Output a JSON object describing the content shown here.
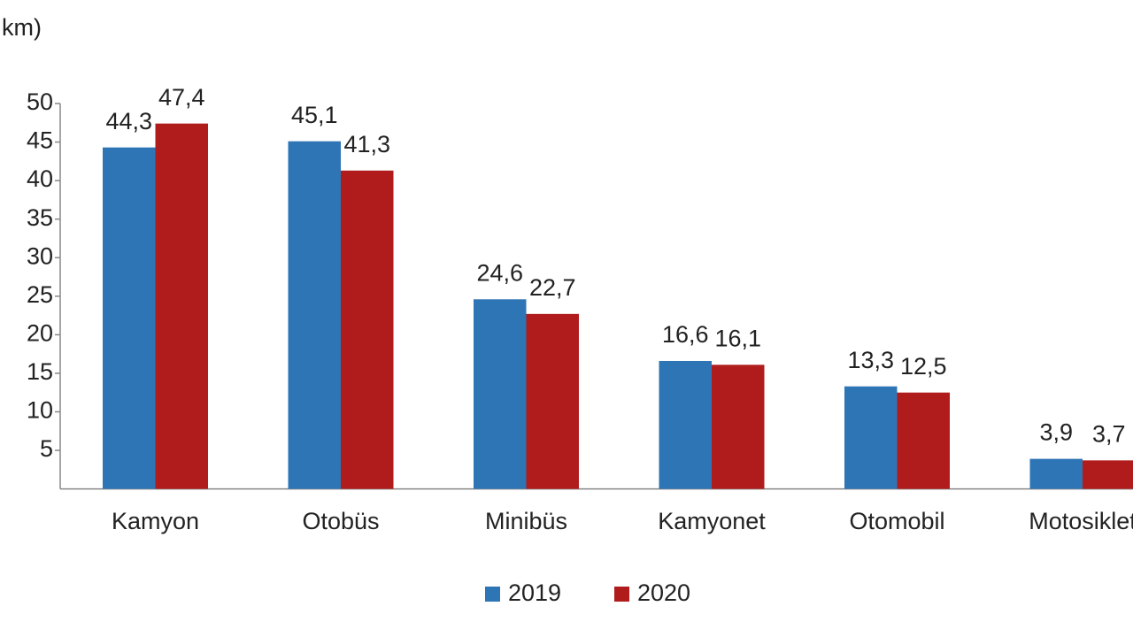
{
  "chart_data": {
    "type": "bar",
    "y_label": "km)",
    "categories": [
      "Kamyon",
      "Otobüs",
      "Minibüs",
      "Kamyonet",
      "Otomobil",
      "Motosiklet"
    ],
    "series": [
      {
        "name": "2019",
        "color": "#2e75b6",
        "values": [
          44.3,
          45.1,
          24.6,
          16.6,
          13.3,
          3.9
        ],
        "value_labels": [
          "44,3",
          "45,1",
          "24,6",
          "16,6",
          "13,3",
          "3,9"
        ]
      },
      {
        "name": "2020",
        "color": "#b01c1c",
        "values": [
          47.4,
          41.3,
          22.7,
          16.1,
          12.5,
          3.7
        ],
        "value_labels": [
          "47,4",
          "41,3",
          "22,7",
          "16,1",
          "12,5",
          "3,7"
        ]
      }
    ],
    "ylim": [
      0,
      50
    ],
    "yticks": [
      5,
      10,
      15,
      20,
      25,
      30,
      35,
      40,
      45,
      50
    ],
    "grid": false,
    "legend": "bottom"
  }
}
